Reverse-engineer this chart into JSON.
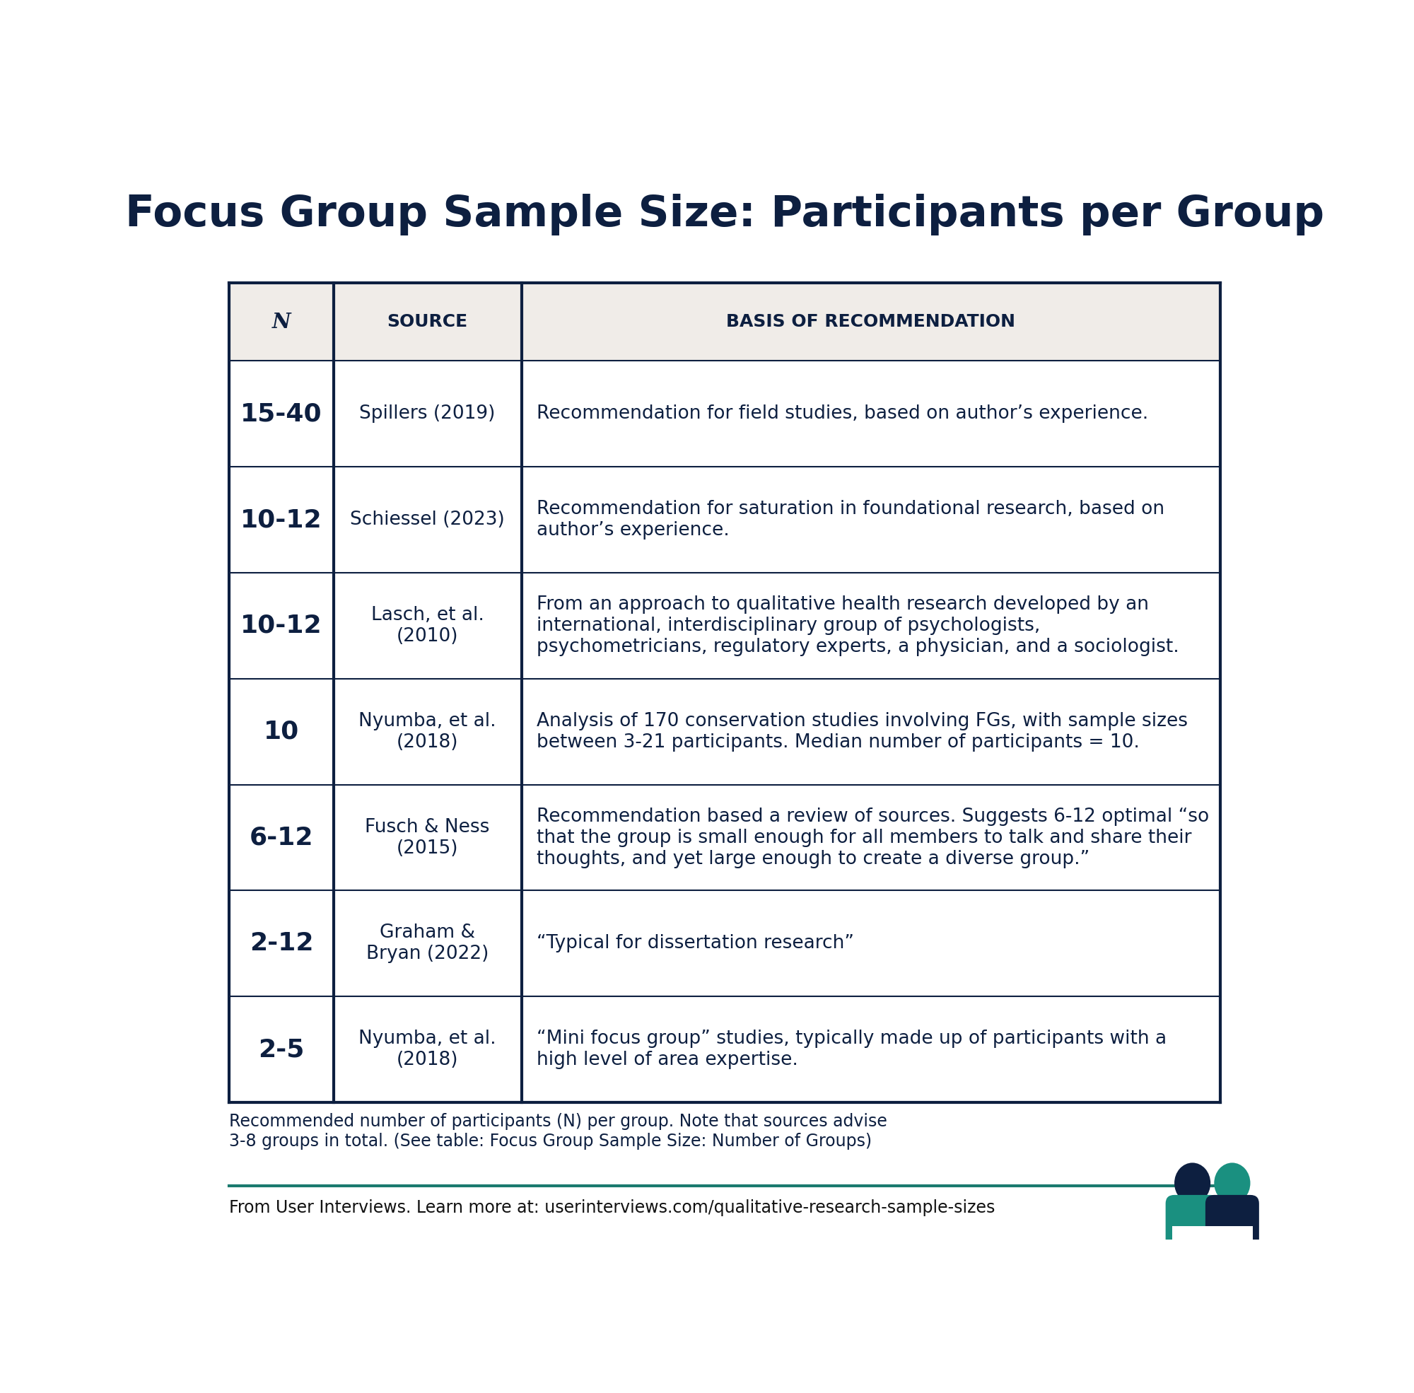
{
  "title": "Focus Group Sample Size: Participants per Group",
  "background_color": "#ffffff",
  "table_bg_header": "#f0ece8",
  "table_bg_rows": "#ffffff",
  "table_border_color": "#0d1f40",
  "header_text_color": "#0d1f40",
  "row_text_color": "#0d1f40",
  "columns": [
    "N",
    "SOURCE",
    "BASIS OF RECOMMENDATION"
  ],
  "col_props": [
    0.105,
    0.19,
    0.705
  ],
  "rows": [
    {
      "n": "15-40",
      "source": "Spillers (2019)",
      "basis": "Recommendation for field studies, based on author’s experience."
    },
    {
      "n": "10-12",
      "source": "Schiessel (2023)",
      "basis": "Recommendation for saturation in foundational research, based on\nauthor’s experience."
    },
    {
      "n": "10-12",
      "source": "Lasch, et al.\n(2010)",
      "basis": "From an approach to qualitative health research developed by an\ninternational, interdisciplinary group of psychologists,\npsychometricians, regulatory experts, a physician, and a sociologist."
    },
    {
      "n": "10",
      "source": "Nyumba, et al.\n(2018)",
      "basis": "Analysis of 170 conservation studies involving FGs, with sample sizes\nbetween 3-21 participants. Median number of participants = 10."
    },
    {
      "n": "6-12",
      "source": "Fusch & Ness\n(2015)",
      "basis": "Recommendation based a review of sources. Suggests 6-12 optimal “so\nthat the group is small enough for all members to talk and share their\nthoughts, and yet large enough to create a diverse group.”"
    },
    {
      "n": "2-12",
      "source": "Graham &\nBryan (2022)",
      "basis": "“Typical for dissertation research”"
    },
    {
      "n": "2-5",
      "source": "Nyumba, et al.\n(2018)",
      "basis": "“Mini focus group” studies, typically made up of participants with a\nhigh level of area expertise."
    }
  ],
  "footer_text_plain": "Recommended number of participants (",
  "footer_text_italic": "N",
  "footer_text_plain2": ") per group. Note that sources advise\n3-8 groups in total. (See table: ",
  "footer_text_italic2": "Focus Group Sample Size: Number of Groups",
  "footer_text_plain3": ")",
  "footer_credit": "From User Interviews. Learn more at: userinterviews.com/qualitative-research-sample-sizes",
  "footer_line_color": "#1a7a6e",
  "logo_navy": "#0d1f40",
  "logo_teal": "#1a9080",
  "title_fontsize": 44,
  "header_fontsize": 18,
  "n_fontsize": 26,
  "source_fontsize": 19,
  "basis_fontsize": 19,
  "footer_fontsize": 17,
  "credit_fontsize": 17
}
